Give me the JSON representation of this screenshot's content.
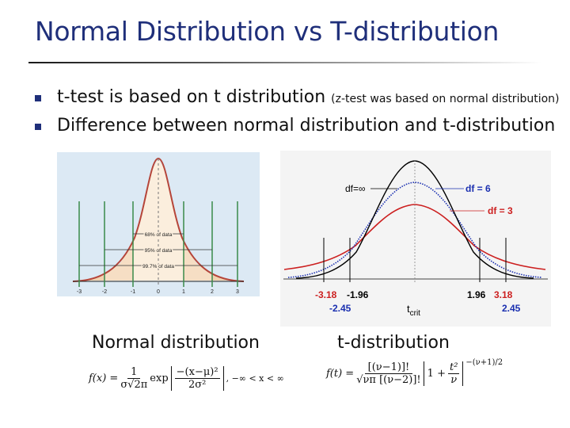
{
  "slide": {
    "title": "Normal Distribution vs T-distribution",
    "bullets": [
      {
        "main": "t-test is based on t distribution",
        "note": "(z-test was based on normal distribution)"
      },
      {
        "main": "Difference between normal distribution and t-distribution",
        "note": ""
      }
    ]
  },
  "normal_figure": {
    "annotations": [
      "68% of data",
      "95% of data",
      "99.7% of data"
    ],
    "ticks": [
      "-3",
      "-2",
      "-1",
      "0",
      "1",
      "2",
      "3"
    ],
    "caption": "Normal distribution",
    "formula": {
      "lhs": "f(x) =",
      "frac_num": "1",
      "frac_den": "σ√2π",
      "exp": "exp",
      "bracket_num": "−(x−μ)²",
      "bracket_den": "2σ²",
      "domain": ", −∞ < x < ∞"
    }
  },
  "t_figure": {
    "legend": [
      "df=∞",
      "df = 6",
      "df = 3"
    ],
    "legend_colors": [
      "#000000",
      "#1a2fb0",
      "#cc1f1f"
    ],
    "critical_labels": [
      "-3.18",
      "-1.96",
      "-2.45",
      "1.96",
      "3.18",
      "2.45"
    ],
    "axis_label_main": "t",
    "axis_label_sub": "crit",
    "caption": "t-distribution",
    "formula": {
      "lhs": "f(t) =",
      "num": "[(ν−1)]!",
      "den": "√νπ [(ν−2)]!",
      "base_one": "1 +",
      "t2": "t²",
      "nu": "ν",
      "power": "−(ν+1)/2"
    }
  }
}
